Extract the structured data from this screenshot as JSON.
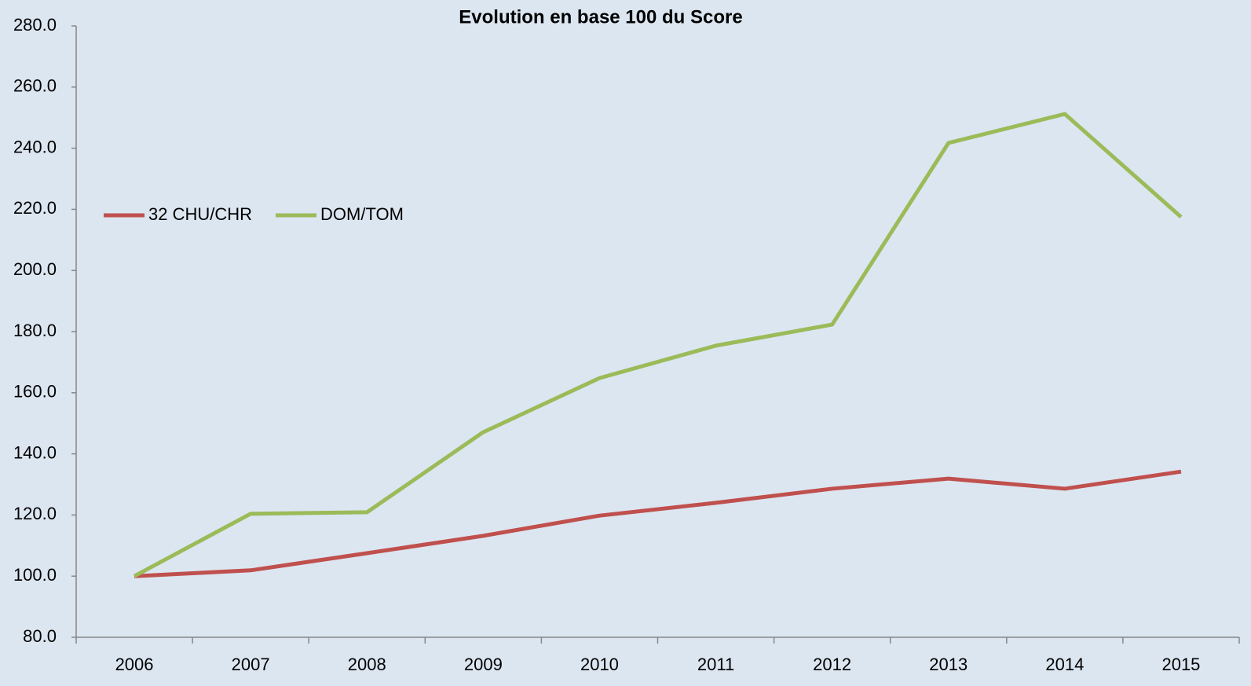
{
  "chart_data": {
    "type": "line",
    "title": "Evolution en base 100 du Score",
    "categories": [
      "2006",
      "2007",
      "2008",
      "2009",
      "2010",
      "2011",
      "2012",
      "2013",
      "2014",
      "2015"
    ],
    "series": [
      {
        "name": "32 CHU/CHR",
        "color": "#c0504d",
        "values": [
          100.0,
          101.9,
          107.5,
          113.2,
          119.8,
          124.0,
          128.6,
          131.9,
          128.6,
          134.2
        ]
      },
      {
        "name": "DOM/TOM",
        "color": "#9bbb59",
        "values": [
          100.0,
          120.4,
          120.9,
          147.1,
          164.8,
          175.4,
          182.3,
          241.7,
          251.2,
          217.5
        ]
      }
    ],
    "ylim": [
      80,
      280
    ],
    "yticks": [
      {
        "value": 80,
        "label": "80.0"
      },
      {
        "value": 100,
        "label": "100.0"
      },
      {
        "value": 120,
        "label": "120.0"
      },
      {
        "value": 140,
        "label": "140.0"
      },
      {
        "value": 160,
        "label": "160.0"
      },
      {
        "value": 180,
        "label": "180.0"
      },
      {
        "value": 200,
        "label": "200.0"
      },
      {
        "value": 220,
        "label": "220.0"
      },
      {
        "value": 240,
        "label": "240.0"
      },
      {
        "value": 260,
        "label": "260.0"
      },
      {
        "value": 280,
        "label": "280.0"
      }
    ],
    "grid": false,
    "legend": "left"
  }
}
